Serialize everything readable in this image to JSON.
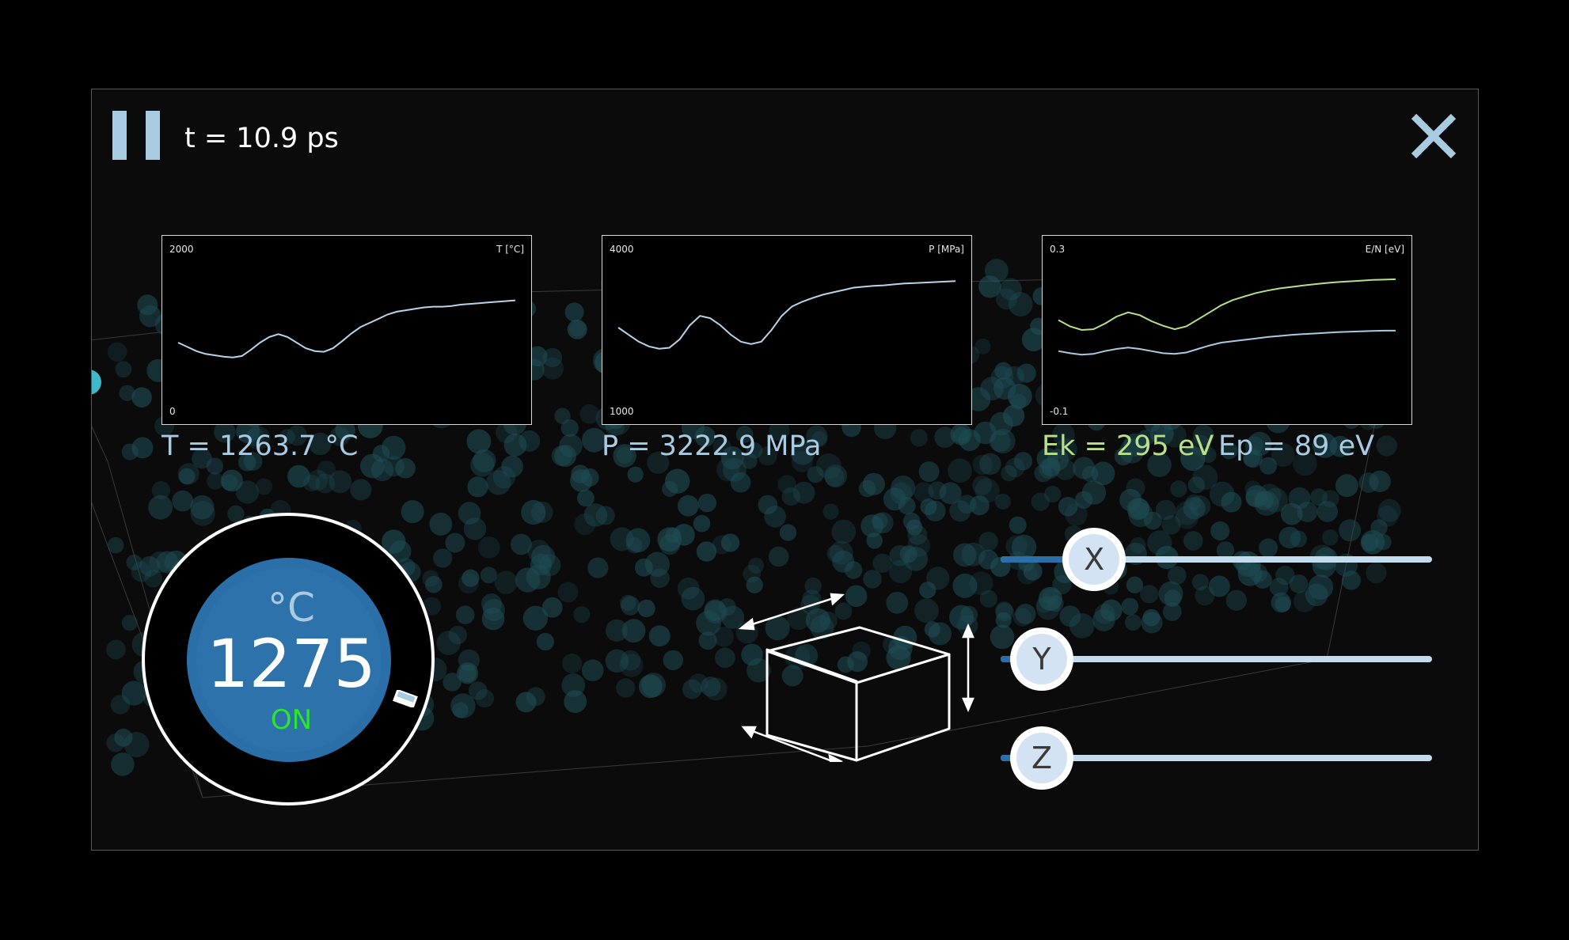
{
  "header": {
    "time_text": "t = 10.9 ps",
    "pause_icon": "pause-icon",
    "close_icon": "close-icon"
  },
  "graphs": {
    "temperature": {
      "max_label": "2000",
      "min_label": "0",
      "unit_label": "T [°C]",
      "ylim": [
        0,
        2000
      ],
      "series": [
        {
          "color": "#b8d4ea",
          "values": [
            820,
            760,
            700,
            660,
            640,
            620,
            610,
            630,
            720,
            820,
            900,
            940,
            900,
            820,
            740,
            700,
            690,
            740,
            840,
            950,
            1040,
            1100,
            1160,
            1220,
            1260,
            1280,
            1300,
            1320,
            1330,
            1330,
            1340,
            1360,
            1370,
            1380,
            1390,
            1400,
            1410,
            1420
          ]
        }
      ]
    },
    "pressure": {
      "max_label": "4000",
      "min_label": "1000",
      "unit_label": "P [MPa]",
      "ylim": [
        1000,
        4000
      ],
      "series": [
        {
          "color": "#b8d4ea",
          "values": [
            2550,
            2400,
            2250,
            2150,
            2100,
            2120,
            2300,
            2600,
            2800,
            2750,
            2600,
            2400,
            2250,
            2200,
            2250,
            2500,
            2800,
            3000,
            3100,
            3180,
            3250,
            3300,
            3350,
            3400,
            3420,
            3440,
            3450,
            3470,
            3490,
            3500,
            3510,
            3520,
            3530,
            3540
          ]
        }
      ]
    },
    "energy": {
      "max_label": "0.3",
      "min_label": "-0.1",
      "unit_label": "E/N [eV]",
      "ylim": [
        -0.1,
        0.3
      ],
      "series": [
        {
          "color": "#b8e08a",
          "values": [
            0.128,
            0.11,
            0.1,
            0.102,
            0.118,
            0.138,
            0.15,
            0.142,
            0.125,
            0.112,
            0.102,
            0.11,
            0.13,
            0.15,
            0.17,
            0.185,
            0.195,
            0.205,
            0.212,
            0.218,
            0.222,
            0.226,
            0.23,
            0.233,
            0.236,
            0.238,
            0.24,
            0.242,
            0.243,
            0.244
          ]
        },
        {
          "color": "#a9cbe2",
          "values": [
            0.04,
            0.034,
            0.03,
            0.032,
            0.04,
            0.046,
            0.05,
            0.046,
            0.04,
            0.034,
            0.032,
            0.036,
            0.046,
            0.056,
            0.064,
            0.068,
            0.072,
            0.076,
            0.08,
            0.083,
            0.086,
            0.088,
            0.09,
            0.092,
            0.094,
            0.095,
            0.096,
            0.097,
            0.098,
            0.098
          ]
        }
      ]
    }
  },
  "readouts": {
    "temperature": "T = 1263.7 °C",
    "pressure": "P = 3222.9 MPa",
    "kinetic": "Ek = 295 eV",
    "potential": "Ep = 89 eV",
    "colors": {
      "temperature": "#a9cbe2",
      "pressure": "#a9cbe2",
      "kinetic": "#b8e08a",
      "potential": "#a9cbe2"
    }
  },
  "thermostat": {
    "unit": "°C",
    "value": "1275",
    "state": "ON",
    "state_color": "#2ee52e"
  },
  "box_control": {
    "cube_icon": "cube-icon"
  },
  "sliders": [
    {
      "label": "X",
      "value": 0.15
    },
    {
      "label": "Y",
      "value": 0.0
    },
    {
      "label": "Z",
      "value": 0.0
    }
  ],
  "colors": {
    "accent": "#a9cbe2",
    "knob_blue": "#2a6fa8",
    "particle": "#1f4d55"
  }
}
